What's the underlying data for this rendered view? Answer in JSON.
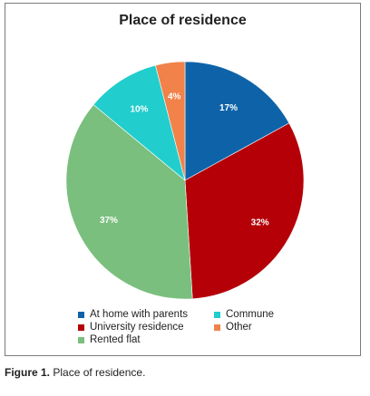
{
  "chart_data": {
    "type": "pie",
    "title": "Place of residence",
    "slices": [
      {
        "name": "At home with parents",
        "value": 17,
        "label": "17%",
        "color": "#0e63a8"
      },
      {
        "name": "University residence",
        "value": 32,
        "label": "32%",
        "color": "#b50008"
      },
      {
        "name": "Rented flat",
        "value": 37,
        "label": "37%",
        "color": "#7abf7d"
      },
      {
        "name": "Commune",
        "value": 10,
        "label": "10%",
        "color": "#21cdcd"
      },
      {
        "name": "Other",
        "value": 4,
        "label": "4%",
        "color": "#f0824a"
      }
    ],
    "legend_position": "bottom"
  },
  "caption": {
    "label": "Figure 1.",
    "text": " Place of residence."
  }
}
